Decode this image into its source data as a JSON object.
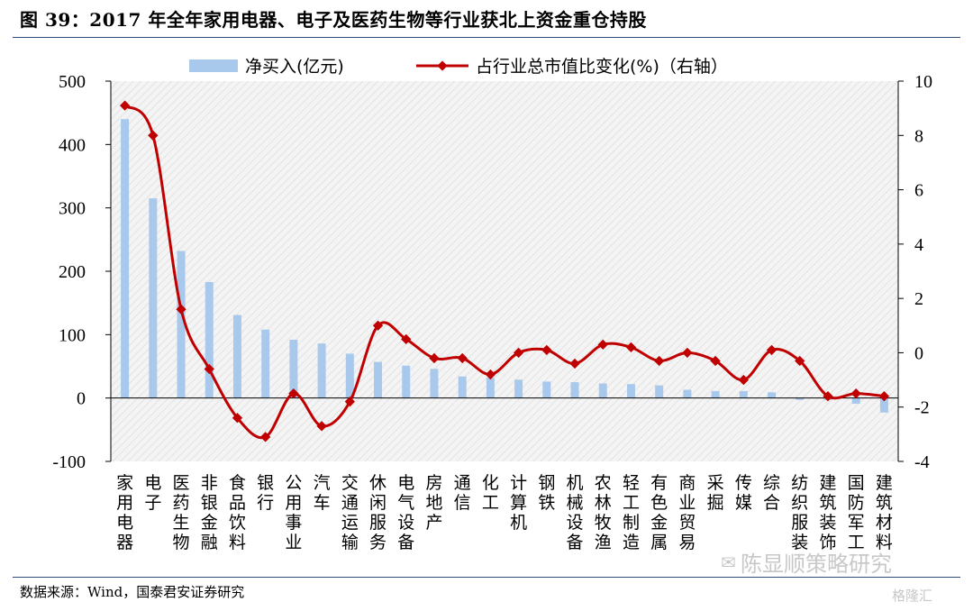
{
  "figure_title": "图 39：2017 年全年家用电器、电子及医药生物等行业获北上资金重仓持股",
  "source_note": "数据来源：Wind，国泰君安证券研究",
  "watermark": "陈显顺策略研究",
  "watermark_icon": "wechat-icon",
  "watermark2": "格隆汇",
  "colors": {
    "bar": "#a9c9ec",
    "line": "#c00000",
    "axis": "#000000",
    "rule": "#2f4d7a"
  },
  "chart_data": {
    "type": "bar+line",
    "legend": {
      "placement": "top",
      "items": [
        {
          "label": "净买入(亿元)",
          "kind": "bar"
        },
        {
          "label": "占行业总市值比变化(%)（右轴）",
          "kind": "line"
        }
      ]
    },
    "categories": [
      "家用电器",
      "电子",
      "医药生物",
      "非银金融",
      "食品饮料",
      "银行",
      "公用事业",
      "汽车",
      "交通运输",
      "休闲服务",
      "电气设备",
      "房地产",
      "通信",
      "化工",
      "计算机",
      "钢铁",
      "机械设备",
      "农林牧渔",
      "轻工制造",
      "有色金属",
      "商业贸易",
      "采掘",
      "传媒",
      "综合",
      "纺织服装",
      "建筑装饰",
      "国防军工",
      "建筑材料"
    ],
    "series": [
      {
        "name": "净买入(亿元)",
        "type": "bar",
        "axis": "left",
        "values": [
          440,
          315,
          232,
          183,
          131,
          108,
          92,
          86,
          70,
          57,
          51,
          46,
          34,
          32,
          29,
          26,
          25,
          23,
          22,
          20,
          13,
          11,
          11,
          9,
          -3,
          -3,
          -9,
          -23
        ]
      },
      {
        "name": "占行业总市值比变化(%)（右轴）",
        "type": "line",
        "axis": "right",
        "values": [
          9.1,
          8.0,
          1.6,
          -0.6,
          -2.4,
          -3.1,
          -1.5,
          -2.7,
          -1.8,
          1.0,
          0.5,
          -0.2,
          -0.2,
          -0.8,
          0.0,
          0.1,
          -0.4,
          0.3,
          0.2,
          -0.3,
          0.0,
          -0.3,
          -1.0,
          0.1,
          -0.3,
          -1.6,
          -1.5,
          -1.6
        ]
      }
    ],
    "y_left": {
      "min": -100,
      "max": 500,
      "ticks": [
        -100,
        0,
        100,
        200,
        300,
        400,
        500
      ]
    },
    "y_right": {
      "min": -4,
      "max": 10,
      "ticks": [
        -4,
        -2,
        0,
        2,
        4,
        6,
        8,
        10
      ]
    },
    "grid": false
  }
}
